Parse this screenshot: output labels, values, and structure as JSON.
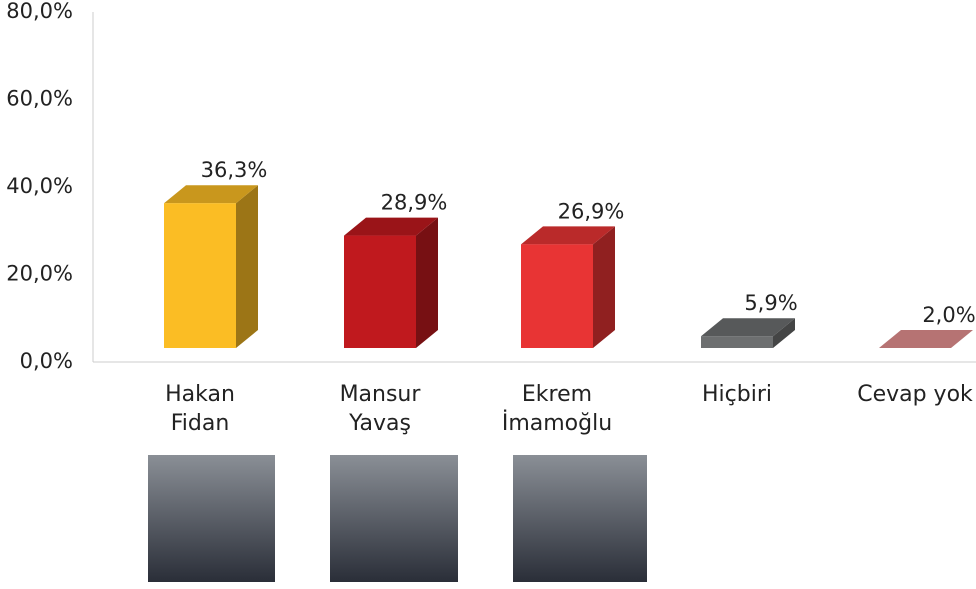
{
  "chart_data": {
    "type": "bar",
    "categories": [
      "Hakan\nFidan",
      "Mansur\nYavaş",
      "Ekrem\nİmamoğlu",
      "Hiçbiri",
      "Cevap yok"
    ],
    "values": [
      36.3,
      28.9,
      26.9,
      5.9,
      2.0
    ],
    "value_labels": [
      "36,3%",
      "28,9%",
      "26,9%",
      "5,9%",
      "2,0%"
    ],
    "colors": [
      "#fbbd24",
      "#c0191e",
      "#e83434",
      "#6d6f70",
      "#e39090"
    ],
    "ylim": [
      0,
      80
    ],
    "yticks": [
      {
        "value": 0,
        "label": "0,0%"
      },
      {
        "value": 20,
        "label": "20,0%"
      },
      {
        "value": 40,
        "label": "40,0%"
      },
      {
        "value": 60,
        "label": "60,0%"
      },
      {
        "value": 80,
        "label": "80,0%"
      }
    ],
    "grid": false
  }
}
